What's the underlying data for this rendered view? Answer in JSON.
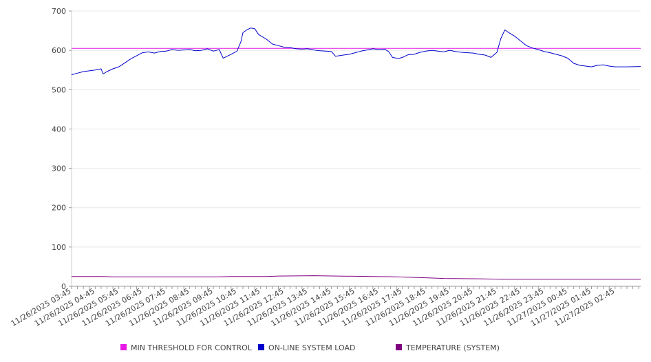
{
  "chart_data": {
    "type": "line",
    "title": "",
    "xlabel": "",
    "ylabel": "",
    "ylim": [
      0,
      700
    ],
    "y_ticks": [
      0,
      100,
      200,
      300,
      400,
      500,
      600,
      700
    ],
    "x_range": [
      "11/26/2025 03:45",
      "11/27/2025 03:50"
    ],
    "x_tick_labels": [
      "11/26/2025 03:45",
      "11/26/2025 04:45",
      "11/26/2025 05:45",
      "11/26/2025 06:45",
      "11/26/2025 07:45",
      "11/26/2025 08:45",
      "11/26/2025 09:45",
      "11/26/2025 10:45",
      "11/26/2025 11:45",
      "11/26/2025 12:45",
      "11/26/2025 13:45",
      "11/26/2025 14:45",
      "11/26/2025 15:45",
      "11/26/2025 16:45",
      "11/26/2025 17:45",
      "11/26/2025 18:45",
      "11/26/2025 19:45",
      "11/26/2025 20:45",
      "11/26/2025 21:45",
      "11/26/2025 22:45",
      "11/26/2025 23:45",
      "11/27/2025 00:45",
      "11/27/2025 01:45",
      "11/27/2025 02:45"
    ],
    "grid": "horizontal",
    "legend_position": "bottom",
    "series": [
      {
        "name": "MIN THRESHOLD FOR CONTROL",
        "color": "#e619e6",
        "points": [
          [
            "11/26/2025 03:45",
            605
          ],
          [
            "11/27/2025 03:50",
            605
          ]
        ]
      },
      {
        "name": "ON-LINE SYSTEM LOAD",
        "color": "#0000cc",
        "points": [
          [
            "11/26/2025 03:45",
            538
          ],
          [
            "11/26/2025 04:00",
            542
          ],
          [
            "11/26/2025 04:15",
            546
          ],
          [
            "11/26/2025 04:30",
            548
          ],
          [
            "11/26/2025 04:45",
            550
          ],
          [
            "11/26/2025 05:00",
            553
          ],
          [
            "11/26/2025 05:05",
            540
          ],
          [
            "11/26/2025 05:15",
            546
          ],
          [
            "11/26/2025 05:30",
            553
          ],
          [
            "11/26/2025 05:45",
            558
          ],
          [
            "11/26/2025 06:00",
            568
          ],
          [
            "11/26/2025 06:15",
            578
          ],
          [
            "11/26/2025 06:30",
            586
          ],
          [
            "11/26/2025 06:45",
            594
          ],
          [
            "11/26/2025 07:00",
            596
          ],
          [
            "11/26/2025 07:15",
            593
          ],
          [
            "11/26/2025 07:30",
            597
          ],
          [
            "11/26/2025 07:45",
            598
          ],
          [
            "11/26/2025 08:00",
            602
          ],
          [
            "11/26/2025 08:15",
            600
          ],
          [
            "11/26/2025 08:30",
            601
          ],
          [
            "11/26/2025 08:45",
            602
          ],
          [
            "11/26/2025 09:00",
            599
          ],
          [
            "11/26/2025 09:15",
            600
          ],
          [
            "11/26/2025 09:30",
            604
          ],
          [
            "11/26/2025 09:45",
            598
          ],
          [
            "11/26/2025 10:00",
            602
          ],
          [
            "11/26/2025 10:10",
            580
          ],
          [
            "11/26/2025 10:30",
            590
          ],
          [
            "11/26/2025 10:45",
            598
          ],
          [
            "11/26/2025 10:55",
            622
          ],
          [
            "11/26/2025 11:00",
            645
          ],
          [
            "11/26/2025 11:10",
            652
          ],
          [
            "11/26/2025 11:20",
            657
          ],
          [
            "11/26/2025 11:30",
            655
          ],
          [
            "11/26/2025 11:40",
            640
          ],
          [
            "11/26/2025 12:00",
            628
          ],
          [
            "11/26/2025 12:15",
            616
          ],
          [
            "11/26/2025 12:30",
            612
          ],
          [
            "11/26/2025 12:45",
            608
          ],
          [
            "11/26/2025 13:00",
            607
          ],
          [
            "11/26/2025 13:15",
            604
          ],
          [
            "11/26/2025 13:30",
            603
          ],
          [
            "11/26/2025 13:45",
            604
          ],
          [
            "11/26/2025 14:00",
            601
          ],
          [
            "11/26/2025 14:15",
            599
          ],
          [
            "11/26/2025 14:30",
            598
          ],
          [
            "11/26/2025 14:45",
            597
          ],
          [
            "11/26/2025 14:55",
            585
          ],
          [
            "11/26/2025 15:15",
            588
          ],
          [
            "11/26/2025 15:30",
            590
          ],
          [
            "11/26/2025 15:45",
            594
          ],
          [
            "11/26/2025 16:00",
            598
          ],
          [
            "11/26/2025 16:15",
            601
          ],
          [
            "11/26/2025 16:30",
            604
          ],
          [
            "11/26/2025 16:45",
            602
          ],
          [
            "11/26/2025 17:00",
            603
          ],
          [
            "11/26/2025 17:10",
            597
          ],
          [
            "11/26/2025 17:20",
            582
          ],
          [
            "11/26/2025 17:35",
            579
          ],
          [
            "11/26/2025 17:45",
            582
          ],
          [
            "11/26/2025 18:00",
            589
          ],
          [
            "11/26/2025 18:15",
            590
          ],
          [
            "11/26/2025 18:30",
            595
          ],
          [
            "11/26/2025 18:45",
            598
          ],
          [
            "11/26/2025 19:00",
            600
          ],
          [
            "11/26/2025 19:15",
            598
          ],
          [
            "11/26/2025 19:30",
            596
          ],
          [
            "11/26/2025 19:45",
            600
          ],
          [
            "11/26/2025 20:00",
            597
          ],
          [
            "11/26/2025 20:15",
            595
          ],
          [
            "11/26/2025 20:30",
            594
          ],
          [
            "11/26/2025 20:45",
            593
          ],
          [
            "11/26/2025 21:00",
            590
          ],
          [
            "11/26/2025 21:15",
            588
          ],
          [
            "11/26/2025 21:30",
            582
          ],
          [
            "11/26/2025 21:45",
            595
          ],
          [
            "11/26/2025 21:55",
            630
          ],
          [
            "11/26/2025 22:05",
            652
          ],
          [
            "11/26/2025 22:15",
            645
          ],
          [
            "11/26/2025 22:30",
            636
          ],
          [
            "11/26/2025 22:45",
            624
          ],
          [
            "11/26/2025 23:00",
            612
          ],
          [
            "11/26/2025 23:15",
            606
          ],
          [
            "11/26/2025 23:30",
            602
          ],
          [
            "11/26/2025 23:45",
            597
          ],
          [
            "11/27/2025 00:00",
            594
          ],
          [
            "11/27/2025 00:15",
            590
          ],
          [
            "11/27/2025 00:30",
            586
          ],
          [
            "11/27/2025 00:45",
            580
          ],
          [
            "11/27/2025 01:00",
            567
          ],
          [
            "11/27/2025 01:15",
            562
          ],
          [
            "11/27/2025 01:30",
            560
          ],
          [
            "11/27/2025 01:45",
            558
          ],
          [
            "11/27/2025 02:00",
            562
          ],
          [
            "11/27/2025 02:15",
            563
          ],
          [
            "11/27/2025 02:30",
            560
          ],
          [
            "11/27/2025 02:45",
            558
          ],
          [
            "11/27/2025 03:15",
            558
          ],
          [
            "11/27/2025 03:50",
            559
          ]
        ]
      },
      {
        "name": "TEMPERATURE (SYSTEM)",
        "color": "#800080",
        "points": [
          [
            "11/26/2025 03:45",
            25
          ],
          [
            "11/26/2025 05:00",
            25
          ],
          [
            "11/26/2025 05:30",
            24
          ],
          [
            "11/26/2025 10:00",
            24
          ],
          [
            "11/26/2025 10:30",
            25
          ],
          [
            "11/26/2025 12:00",
            25
          ],
          [
            "11/26/2025 12:30",
            26
          ],
          [
            "11/26/2025 14:00",
            27
          ],
          [
            "11/26/2025 15:00",
            26
          ],
          [
            "11/26/2025 16:30",
            25
          ],
          [
            "11/26/2025 17:30",
            24
          ],
          [
            "11/26/2025 18:30",
            22
          ],
          [
            "11/26/2025 19:30",
            20
          ],
          [
            "11/26/2025 21:00",
            19
          ],
          [
            "11/26/2025 22:00",
            18
          ],
          [
            "11/27/2025 01:00",
            18
          ],
          [
            "11/27/2025 03:50",
            18
          ]
        ]
      }
    ]
  }
}
